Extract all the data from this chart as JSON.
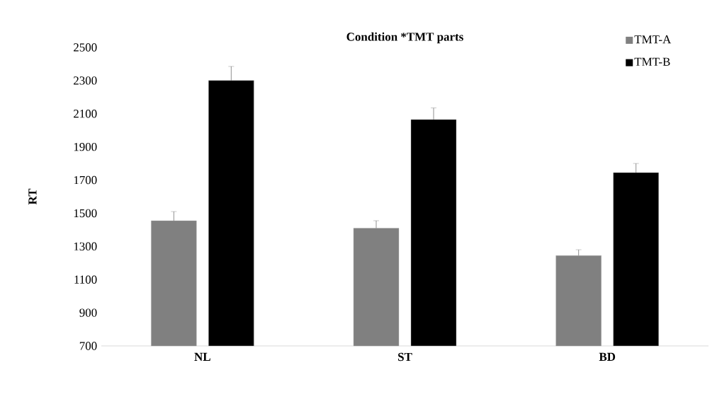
{
  "chart_data": {
    "type": "bar",
    "title": "Condition *TMT parts",
    "ylabel": "RT",
    "categories": [
      "NL",
      "ST",
      "BD"
    ],
    "series": [
      {
        "name": "TMT-A",
        "color": "#808080",
        "values": [
          1455,
          1410,
          1245
        ],
        "errors": [
          [
            1455,
            1510
          ],
          [
            1410,
            1455
          ],
          [
            1245,
            1280
          ]
        ]
      },
      {
        "name": "TMT-B",
        "color": "#000000",
        "values": [
          2300,
          2065,
          1745
        ],
        "errors": [
          [
            2300,
            2385
          ],
          [
            2065,
            2135
          ],
          [
            1745,
            1800
          ]
        ]
      }
    ],
    "ylim": [
      700,
      2500
    ],
    "yticks": [
      700,
      900,
      1100,
      1300,
      1500,
      1700,
      1900,
      2100,
      2300,
      2500
    ],
    "grid": false,
    "legend": "top right"
  }
}
